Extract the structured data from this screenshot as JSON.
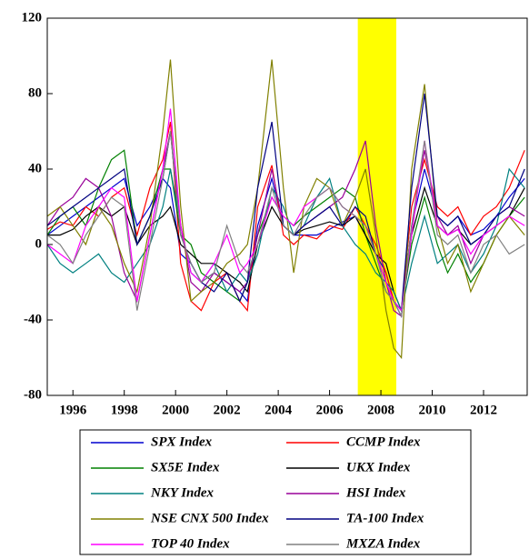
{
  "chart_data": {
    "type": "line",
    "x": [
      1995.0,
      1995.5,
      1996.0,
      1996.5,
      1997.0,
      1997.5,
      1998.0,
      1998.5,
      1999.0,
      1999.5,
      1999.8,
      2000.2,
      2000.6,
      2001.0,
      2001.5,
      2002.0,
      2002.5,
      2002.8,
      2003.2,
      2003.75,
      2004.2,
      2004.6,
      2005.0,
      2005.5,
      2006.0,
      2006.5,
      2007.0,
      2007.4,
      2007.8,
      2008.2,
      2008.5,
      2008.8,
      2009.2,
      2009.7,
      2010.2,
      2010.6,
      2011.0,
      2011.5,
      2012.0,
      2012.5,
      2013.0,
      2013.6
    ],
    "xlim": [
      1995,
      2013.7
    ],
    "xticks": [
      1996,
      1998,
      2000,
      2002,
      2004,
      2006,
      2008,
      2010,
      2012
    ],
    "ylim": [
      -80,
      120
    ],
    "yticks": [
      -80,
      -40,
      0,
      40,
      80,
      120
    ],
    "shade": [
      2007.1,
      2008.6
    ],
    "shade_color": "#ffff00",
    "series": [
      {
        "name": "SPX Index",
        "color": "#0000cd",
        "values": [
          5,
          10,
          15,
          20,
          25,
          30,
          35,
          10,
          20,
          35,
          30,
          -5,
          -10,
          -20,
          -15,
          -20,
          -25,
          -30,
          10,
          35,
          10,
          5,
          5,
          5,
          8,
          12,
          15,
          5,
          -5,
          -15,
          -30,
          -38,
          10,
          40,
          15,
          10,
          15,
          5,
          8,
          15,
          25,
          35
        ]
      },
      {
        "name": "CCMP Index",
        "color": "#ff0000",
        "values": [
          8,
          12,
          10,
          20,
          15,
          25,
          30,
          5,
          30,
          45,
          65,
          -10,
          -30,
          -35,
          -20,
          -15,
          -30,
          -35,
          20,
          42,
          5,
          0,
          5,
          3,
          10,
          8,
          20,
          10,
          0,
          -15,
          -30,
          -35,
          20,
          45,
          20,
          15,
          20,
          5,
          15,
          20,
          30,
          50
        ]
      },
      {
        "name": "SX5E Index",
        "color": "#008000",
        "values": [
          5,
          15,
          20,
          10,
          30,
          45,
          50,
          0,
          15,
          40,
          40,
          5,
          0,
          -15,
          -20,
          -25,
          -30,
          -20,
          5,
          25,
          15,
          10,
          15,
          20,
          25,
          30,
          25,
          5,
          -10,
          -25,
          -30,
          -35,
          0,
          25,
          0,
          -15,
          -5,
          -20,
          -10,
          5,
          15,
          25
        ]
      },
      {
        "name": "UKX Index",
        "color": "#000000",
        "values": [
          5,
          5,
          8,
          15,
          20,
          15,
          20,
          0,
          10,
          15,
          20,
          0,
          -5,
          -10,
          -10,
          -15,
          -20,
          -25,
          0,
          20,
          10,
          5,
          8,
          10,
          12,
          10,
          15,
          5,
          -5,
          -10,
          -25,
          -35,
          5,
          30,
          10,
          5,
          8,
          0,
          5,
          10,
          15,
          30
        ]
      },
      {
        "name": "NKY Index",
        "color": "#008080",
        "values": [
          0,
          -10,
          -15,
          -10,
          -5,
          -15,
          -20,
          -10,
          0,
          20,
          40,
          10,
          -15,
          -20,
          -10,
          -25,
          -15,
          -20,
          -5,
          30,
          20,
          5,
          10,
          25,
          35,
          10,
          0,
          -5,
          -15,
          -20,
          -25,
          -35,
          -10,
          15,
          -10,
          -5,
          0,
          -15,
          -5,
          10,
          40,
          30
        ]
      },
      {
        "name": "HSI Index",
        "color": "#990099",
        "values": [
          10,
          20,
          25,
          35,
          30,
          15,
          -15,
          -30,
          5,
          40,
          60,
          10,
          -20,
          -25,
          -15,
          -20,
          -25,
          -20,
          5,
          40,
          10,
          5,
          10,
          15,
          20,
          25,
          40,
          55,
          10,
          -20,
          -35,
          -38,
          10,
          50,
          15,
          5,
          10,
          -10,
          5,
          15,
          20,
          15
        ]
      },
      {
        "name": "NSE CNX 500 Index",
        "color": "#808000",
        "values": [
          15,
          20,
          10,
          0,
          20,
          10,
          -10,
          -25,
          10,
          60,
          98,
          20,
          -30,
          -25,
          -20,
          -10,
          -5,
          0,
          30,
          98,
          30,
          -15,
          20,
          35,
          30,
          10,
          25,
          40,
          5,
          -35,
          -55,
          -60,
          40,
          85,
          10,
          -10,
          0,
          -25,
          -10,
          5,
          15,
          5
        ]
      },
      {
        "name": "TA-100 Index",
        "color": "#000080",
        "values": [
          10,
          15,
          20,
          25,
          30,
          35,
          40,
          0,
          15,
          35,
          60,
          5,
          -10,
          -20,
          -25,
          -15,
          -30,
          -20,
          30,
          65,
          10,
          5,
          10,
          15,
          20,
          10,
          20,
          15,
          -5,
          -20,
          -30,
          -35,
          30,
          80,
          15,
          10,
          15,
          0,
          5,
          15,
          20,
          40
        ]
      },
      {
        "name": "TOP 40 Index",
        "color": "#ff00ff",
        "values": [
          0,
          -5,
          -10,
          10,
          20,
          30,
          25,
          -30,
          5,
          40,
          72,
          10,
          -15,
          -20,
          -10,
          5,
          -15,
          -10,
          0,
          25,
          15,
          10,
          20,
          25,
          30,
          20,
          15,
          10,
          -5,
          -20,
          -30,
          -35,
          5,
          55,
          10,
          5,
          8,
          -5,
          5,
          10,
          15,
          10
        ]
      },
      {
        "name": "MXZA Index",
        "color": "#808080",
        "values": [
          5,
          0,
          -10,
          5,
          15,
          25,
          20,
          -35,
          0,
          35,
          60,
          5,
          -10,
          -20,
          -15,
          10,
          -10,
          -15,
          0,
          30,
          10,
          5,
          15,
          25,
          30,
          20,
          15,
          10,
          -5,
          -25,
          -30,
          -38,
          10,
          55,
          5,
          0,
          5,
          -15,
          0,
          5,
          -5,
          0
        ]
      }
    ]
  }
}
